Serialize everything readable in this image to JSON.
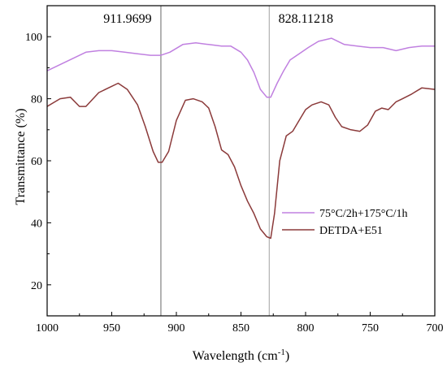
{
  "chart_data": {
    "type": "line",
    "xlabel": "Wavelength (cm",
    "xlabel_sup": "-1",
    "xlabel_end": ")",
    "ylabel": "Transmittance (%)",
    "xlim": [
      1000,
      700
    ],
    "ylim": [
      10,
      110
    ],
    "x_reversed": true,
    "x_ticks": [
      1000,
      950,
      900,
      850,
      800,
      750,
      700
    ],
    "y_ticks": [
      20,
      40,
      60,
      80,
      100
    ],
    "grid": false,
    "legend_placement": "right-center",
    "annotations": [
      {
        "text": "911.9699",
        "x": 911.9699
      },
      {
        "text": "828.11218",
        "x": 828.11218
      }
    ],
    "series": [
      {
        "name": "75°C/2h+175°C/1h",
        "color": "#c080e0",
        "x": [
          1000,
          990,
          980,
          970,
          960,
          950,
          940,
          930,
          920,
          912,
          905,
          895,
          885,
          875,
          865,
          858,
          850,
          845,
          840,
          835,
          830,
          827,
          822,
          817,
          812,
          805,
          798,
          790,
          780,
          770,
          760,
          750,
          740,
          730,
          720,
          710,
          700
        ],
        "y": [
          89,
          91,
          93,
          95,
          95.5,
          95.5,
          95,
          94.5,
          94,
          94,
          95,
          97.5,
          98,
          97.5,
          97,
          97,
          95,
          92.5,
          88.5,
          83,
          80.5,
          80.5,
          85,
          89,
          92.5,
          94.5,
          96.5,
          98.5,
          99.5,
          97.5,
          97,
          96.5,
          96.5,
          95.5,
          96.5,
          97,
          97
        ]
      },
      {
        "name": "DETDA+E51",
        "color": "#8b3a3a",
        "x": [
          1000,
          990,
          982,
          975,
          970,
          960,
          950,
          945,
          938,
          930,
          924,
          918,
          914,
          911,
          906,
          900,
          893,
          887,
          880,
          875,
          870,
          865,
          860,
          855,
          850,
          845,
          840,
          835,
          830,
          827,
          824,
          820,
          815,
          810,
          805,
          800,
          795,
          788,
          782,
          777,
          772,
          765,
          758,
          752,
          746,
          741,
          736,
          730,
          725,
          718,
          710,
          700
        ],
        "y": [
          77.5,
          80,
          80.5,
          77.5,
          77.5,
          82,
          84,
          85,
          83,
          78,
          71,
          63,
          59.5,
          59.5,
          63,
          73,
          79.5,
          80,
          79,
          77,
          71,
          63.5,
          62,
          58,
          52,
          47,
          43,
          38,
          35.5,
          35,
          43,
          60,
          68,
          69.5,
          73,
          76.5,
          78,
          79,
          78,
          74,
          71,
          70,
          69.5,
          71.5,
          76,
          77,
          76.5,
          79,
          80,
          81.5,
          83.5,
          83
        ]
      }
    ]
  }
}
